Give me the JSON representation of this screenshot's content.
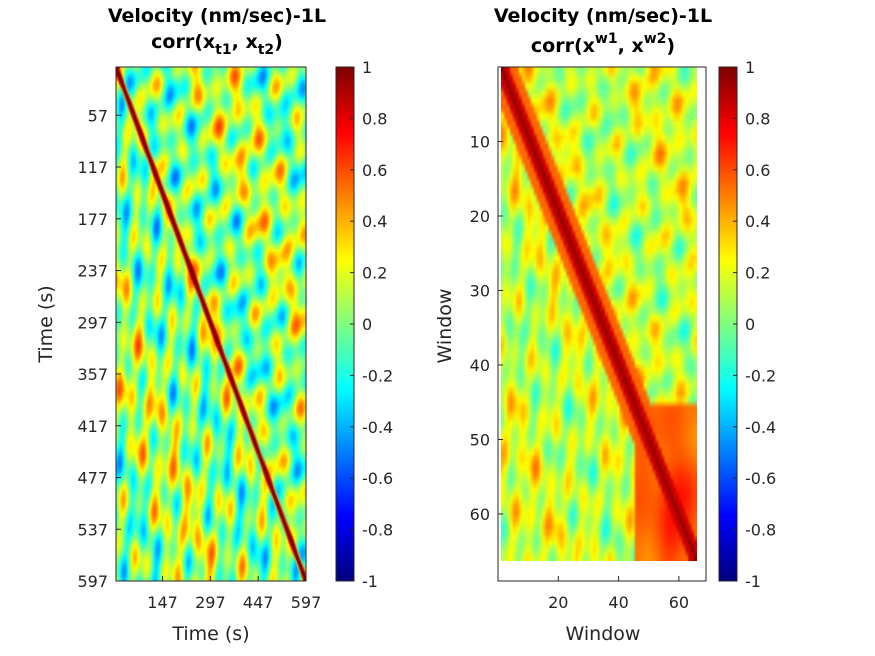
{
  "chart_data": [
    {
      "type": "heatmap",
      "title_line1": "Velocity (nm/sec)-1L",
      "title_line2_prefix": "corr(x",
      "title_sub1": "t1",
      "title_sep": ", x",
      "title_sub2": "t2",
      "title_suffix": ")",
      "xlabel": "Time (s)",
      "ylabel": "Time (s)",
      "xticks": [
        147,
        297,
        447,
        597
      ],
      "yticks": [
        57,
        117,
        177,
        237,
        297,
        357,
        417,
        477,
        537,
        597
      ],
      "xlim": [
        1,
        597
      ],
      "ylim": [
        1,
        597
      ],
      "colormap": "jet",
      "clim": [
        -1,
        1
      ],
      "colorbar_ticks": [
        "1",
        "0.8",
        "0.6",
        "0.4",
        "0.2",
        "0",
        "-0.2",
        "-0.4",
        "-0.6",
        "-0.8",
        "-1"
      ],
      "diagonal_value": 1
    },
    {
      "type": "heatmap",
      "title_line1": "Velocity (nm/sec)-1L",
      "title_line2_prefix": "corr(x",
      "title_sup1": "w1",
      "title_sep": ", x",
      "title_sup2": "w2",
      "title_suffix": ")",
      "xlabel": "Window",
      "ylabel": "Window",
      "xticks": [
        20,
        40,
        60
      ],
      "yticks": [
        10,
        20,
        30,
        40,
        50,
        60
      ],
      "xlim": [
        0,
        69
      ],
      "ylim": [
        0,
        69
      ],
      "data_extent": [
        1,
        66
      ],
      "colormap": "jet",
      "clim": [
        -1,
        1
      ],
      "colorbar_ticks": [
        "1",
        "0.8",
        "0.6",
        "0.4",
        "0.2",
        "0",
        "-0.2",
        "-0.4",
        "-0.6",
        "-0.8",
        "-1"
      ],
      "diagonal_value": 1
    }
  ]
}
